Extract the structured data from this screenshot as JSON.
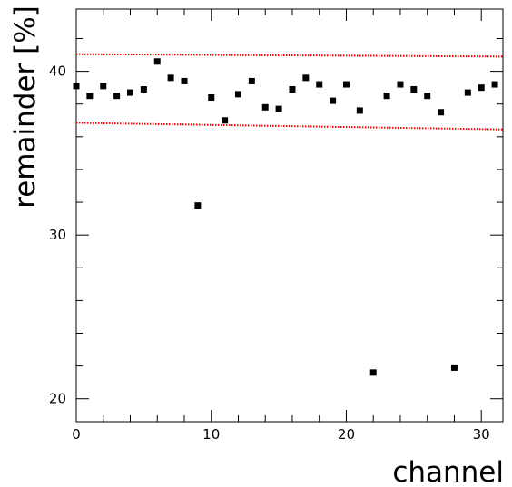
{
  "chart_data": {
    "type": "scatter",
    "title": "",
    "xlabel": "channel",
    "ylabel": "remainder [%]",
    "xlim": [
      0,
      31.6
    ],
    "ylim": [
      18.6,
      43.8
    ],
    "x_ticks": [
      0,
      10,
      20,
      30
    ],
    "y_ticks": [
      20,
      30,
      40
    ],
    "grid": false,
    "colors": {
      "points": "#000000",
      "bands": "#ff0000",
      "axes": "#000000"
    },
    "series": [
      {
        "marker": "square",
        "x": [
          0,
          1,
          2,
          3,
          4,
          5,
          6,
          7,
          8,
          9,
          10,
          11,
          12,
          13,
          14,
          15,
          16,
          17,
          18,
          19,
          20,
          21,
          22,
          23,
          24,
          25,
          26,
          27,
          28,
          29,
          30,
          31
        ],
        "y": [
          39.1,
          38.5,
          39.1,
          38.5,
          38.7,
          38.9,
          40.6,
          39.6,
          39.4,
          31.8,
          38.4,
          37.0,
          38.6,
          39.4,
          37.8,
          37.7,
          38.9,
          39.6,
          39.2,
          38.2,
          39.2,
          37.6,
          21.6,
          38.5,
          39.2,
          38.9,
          38.5,
          37.5,
          21.9,
          38.7,
          39.0,
          39.2
        ]
      }
    ],
    "reference_lines": [
      {
        "style": "dotted",
        "x": [
          0,
          31.6
        ],
        "y": [
          41.05,
          40.9
        ]
      },
      {
        "style": "dotted",
        "x": [
          0,
          31.6
        ],
        "y": [
          36.85,
          36.45
        ]
      }
    ]
  }
}
